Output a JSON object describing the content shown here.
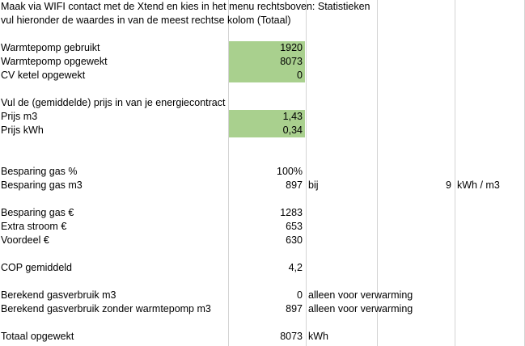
{
  "sheet": {
    "instruction_line_1": "Maak via WIFI contact met de Xtend en kies in het menu rechtsboven: Statistieken",
    "instruction_line_2": "vul hieronder de waardes in van de meest rechtse kolom (Totaal)",
    "hp_used_label": "Warmtepomp gebruikt",
    "hp_used_value": "1920",
    "hp_generated_label": "Warmtepomp opgewekt",
    "hp_generated_value": "8073",
    "cv_generated_label": "CV ketel opgewekt",
    "cv_generated_value": "0",
    "price_instruction": "Vul de (gemiddelde) prijs in van je energiecontract",
    "price_m3_label": "Prijs m3",
    "price_m3_value": "1,43",
    "price_kwh_label": "Prijs kWh",
    "price_kwh_value": "0,34",
    "saving_gas_pct_label": "Besparing gas %",
    "saving_gas_pct_value": "100%",
    "saving_gas_m3_label": "Besparing gas m3",
    "saving_gas_m3_value": "897",
    "saving_gas_m3_bij": "bij",
    "saving_gas_m3_factor": "9",
    "saving_gas_m3_unit": "kWh / m3",
    "saving_gas_eur_label": "Besparing gas €",
    "saving_gas_eur_value": "1283",
    "extra_power_label": "Extra stroom €",
    "extra_power_value": "653",
    "advantage_label": "Voordeel €",
    "advantage_value": "630",
    "cop_label": "COP gemiddeld",
    "cop_value": "4,2",
    "calc_gas_label": "Berekend gasverbruik m3",
    "calc_gas_value": "0",
    "calc_gas_note": "alleen voor verwarming",
    "calc_gas_nohp_label": "Berekend gasverbruik zonder warmtepomp m3",
    "calc_gas_nohp_value": "897",
    "calc_gas_nohp_note": "alleen voor verwarming",
    "total_generated_label": "Totaal opgewekt",
    "total_generated_value": "8073",
    "total_generated_unit": "kWh"
  }
}
